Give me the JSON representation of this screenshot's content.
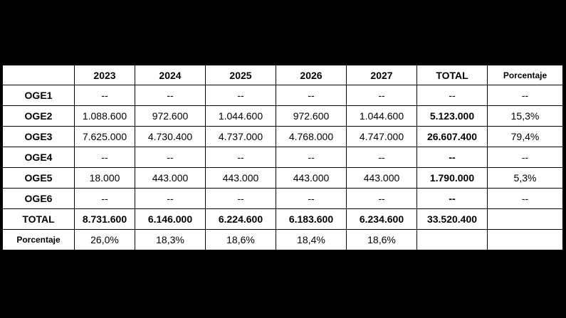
{
  "table": {
    "header": [
      "",
      "2023",
      "2024",
      "2025",
      "2026",
      "2027",
      "TOTAL",
      "Porcentaje"
    ],
    "rows": [
      {
        "label": "OGE1",
        "cells": [
          "--",
          "--",
          "--",
          "--",
          "--"
        ],
        "total": "--",
        "percent": "--"
      },
      {
        "label": "OGE2",
        "cells": [
          "1.088.600",
          "972.600",
          "1.044.600",
          "972.600",
          "1.044.600"
        ],
        "total": "5.123.000",
        "percent": "15,3%"
      },
      {
        "label": "OGE3",
        "cells": [
          "7.625.000",
          "4.730.400",
          "4.737.000",
          "4.768.000",
          "4.747.000"
        ],
        "total": "26.607.400",
        "percent": "79,4%"
      },
      {
        "label": "OGE4",
        "cells": [
          "--",
          "--",
          "--",
          "--",
          "--"
        ],
        "total": "--",
        "percent": "--"
      },
      {
        "label": "OGE5",
        "cells": [
          "18.000",
          "443.000",
          "443.000",
          "443.000",
          "443.000"
        ],
        "total": "1.790.000",
        "percent": "5,3%"
      },
      {
        "label": "OGE6",
        "cells": [
          "--",
          "--",
          "--",
          "--",
          "--"
        ],
        "total": "--",
        "percent": "--"
      },
      {
        "label": "TOTAL",
        "cells": [
          "8.731.600",
          "6.146.000",
          "6.224.600",
          "6.183.600",
          "6.234.600"
        ],
        "total": "33.520.400",
        "percent": ""
      },
      {
        "label": "Porcentaje",
        "cells": [
          "26,0%",
          "18,3%",
          "18,6%",
          "18,4%",
          "18,6%"
        ],
        "total": "",
        "percent": ""
      }
    ]
  }
}
